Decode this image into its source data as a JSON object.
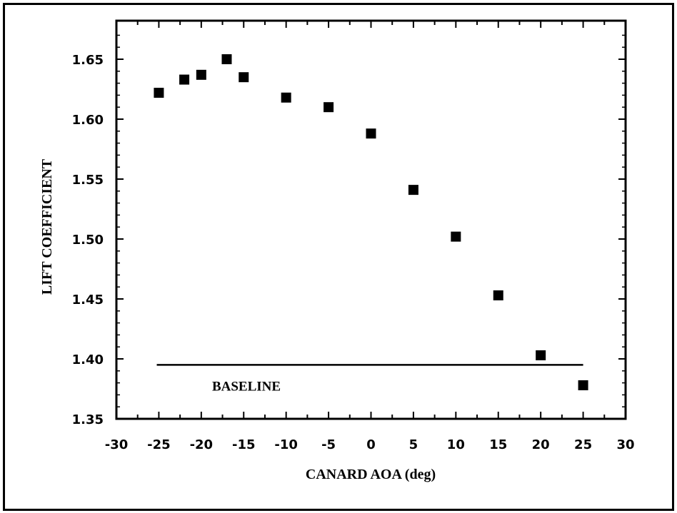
{
  "chart_data": {
    "type": "scatter",
    "title": "",
    "xlabel": "CANARD AOA (deg)",
    "ylabel": "LIFT COEFFICIENT",
    "xlim": [
      -30,
      30
    ],
    "ylim": [
      1.35,
      1.68
    ],
    "x_ticks": [
      -30,
      -25,
      -20,
      -15,
      -10,
      -5,
      0,
      5,
      10,
      15,
      20,
      25,
      30
    ],
    "x_tick_labels": [
      "-30",
      "-25",
      "-20",
      "-15",
      "-10",
      "-5",
      "0",
      "5",
      "10",
      "15",
      "20",
      "25",
      "30"
    ],
    "y_ticks": [
      1.35,
      1.4,
      1.45,
      1.5,
      1.55,
      1.6,
      1.65
    ],
    "y_tick_labels": [
      "1.35",
      "1.40",
      "1.45",
      "1.50",
      "1.55",
      "1.60",
      "1.65"
    ],
    "series": [
      {
        "marker": "square",
        "color": "#000000",
        "x": [
          -25,
          -22,
          -20,
          -17,
          -15,
          -10,
          -5,
          0,
          5,
          10,
          15,
          20,
          25
        ],
        "y": [
          1.622,
          1.633,
          1.637,
          1.65,
          1.635,
          1.618,
          1.61,
          1.588,
          1.541,
          1.502,
          1.453,
          1.403,
          1.378
        ]
      }
    ],
    "reference_lines": [
      {
        "label": "BASELINE",
        "y": 1.395,
        "x_range": [
          -26,
          25
        ]
      }
    ],
    "grid": false
  }
}
